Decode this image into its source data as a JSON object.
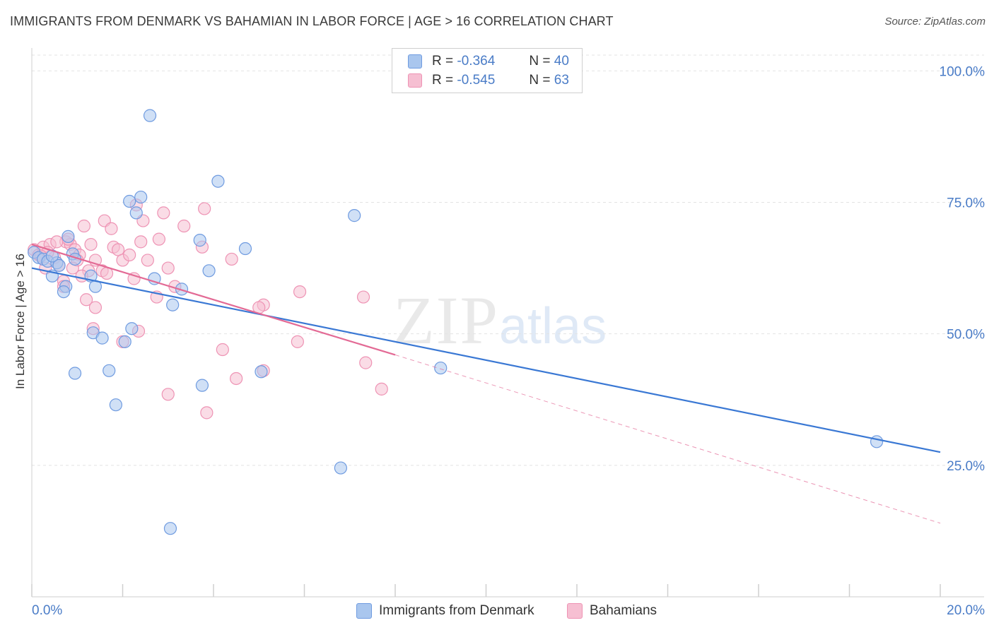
{
  "header": {
    "title": "IMMIGRANTS FROM DENMARK VS BAHAMIAN IN LABOR FORCE | AGE > 16 CORRELATION CHART",
    "source": "Source: ZipAtlas.com"
  },
  "watermark": {
    "zip": "ZIP",
    "atlas": "atlas"
  },
  "legend": {
    "series1": {
      "r_label": "R =",
      "r_value": "-0.364",
      "n_label": "N =",
      "n_value": "40"
    },
    "series2": {
      "r_label": "R =",
      "r_value": "-0.545",
      "n_label": "N =",
      "n_value": "63"
    }
  },
  "bottom_legend": {
    "series1": "Immigrants from Denmark",
    "series2": "Bahamians"
  },
  "colors": {
    "blue_fill": "#a9c6ee",
    "blue_stroke": "#6f9be0",
    "blue_line": "#3a78d4",
    "pink_fill": "#f6bfd2",
    "pink_stroke": "#ee93b4",
    "pink_line": "#e36a95",
    "grid": "#e3e3e3",
    "axis_text": "#4a7cc7"
  },
  "chart_data": {
    "type": "scatter",
    "title": "IMMIGRANTS FROM DENMARK VS BAHAMIAN IN LABOR FORCE | AGE > 16 CORRELATION CHART",
    "xlabel": "",
    "ylabel": "In Labor Force | Age > 16",
    "xlim": [
      0,
      20
    ],
    "ylim": [
      0,
      103
    ],
    "x_tick_labels": [
      "0.0%",
      "20.0%"
    ],
    "y_ticks": [
      25,
      50,
      75,
      100
    ],
    "y_tick_labels": [
      "25.0%",
      "50.0%",
      "75.0%",
      "100.0%"
    ],
    "grid": true,
    "series": [
      {
        "name": "Immigrants from Denmark",
        "color": "blue",
        "points": [
          [
            0.05,
            65.5
          ],
          [
            0.15,
            64.5
          ],
          [
            0.25,
            64.2
          ],
          [
            0.35,
            63.8
          ],
          [
            0.55,
            63.5
          ],
          [
            0.6,
            63.0
          ],
          [
            0.45,
            61.0
          ],
          [
            0.8,
            68.5
          ],
          [
            0.9,
            65.2
          ],
          [
            1.3,
            61.0
          ],
          [
            0.75,
            59.0
          ],
          [
            0.95,
            64.2
          ],
          [
            1.4,
            59.0
          ],
          [
            0.7,
            58.0
          ],
          [
            2.6,
            91.5
          ],
          [
            2.4,
            76.0
          ],
          [
            2.15,
            75.2
          ],
          [
            2.3,
            73.0
          ],
          [
            4.1,
            79.0
          ],
          [
            3.7,
            67.8
          ],
          [
            3.9,
            62.0
          ],
          [
            2.7,
            60.5
          ],
          [
            3.3,
            58.5
          ],
          [
            3.1,
            55.5
          ],
          [
            4.7,
            66.2
          ],
          [
            7.1,
            72.5
          ],
          [
            2.2,
            51.0
          ],
          [
            1.35,
            50.2
          ],
          [
            1.55,
            49.2
          ],
          [
            2.05,
            48.5
          ],
          [
            0.95,
            42.5
          ],
          [
            1.7,
            43.0
          ],
          [
            3.75,
            40.2
          ],
          [
            5.05,
            42.8
          ],
          [
            9.0,
            43.5
          ],
          [
            1.85,
            36.5
          ],
          [
            6.8,
            24.5
          ],
          [
            3.05,
            13.0
          ],
          [
            18.6,
            29.5
          ],
          [
            0.45,
            64.8
          ]
        ],
        "trend": {
          "x": [
            0,
            20
          ],
          "y": [
            62.5,
            27.5
          ],
          "style": "solid"
        }
      },
      {
        "name": "Bahamians",
        "color": "pink",
        "points": [
          [
            0.05,
            66.0
          ],
          [
            0.15,
            65.0
          ],
          [
            0.25,
            66.5
          ],
          [
            0.4,
            67.0
          ],
          [
            0.5,
            64.5
          ],
          [
            0.3,
            62.5
          ],
          [
            0.6,
            63.0
          ],
          [
            0.75,
            67.5
          ],
          [
            0.85,
            67.0
          ],
          [
            0.95,
            66.0
          ],
          [
            1.05,
            65.0
          ],
          [
            0.8,
            68.0
          ],
          [
            1.15,
            70.5
          ],
          [
            1.6,
            71.5
          ],
          [
            1.75,
            70.0
          ],
          [
            1.8,
            66.5
          ],
          [
            1.9,
            66.0
          ],
          [
            2.0,
            64.0
          ],
          [
            2.15,
            65.0
          ],
          [
            1.4,
            64.0
          ],
          [
            1.25,
            62.0
          ],
          [
            1.1,
            61.0
          ],
          [
            1.55,
            62.0
          ],
          [
            1.65,
            61.5
          ],
          [
            0.7,
            60.0
          ],
          [
            0.7,
            59.0
          ],
          [
            1.2,
            56.5
          ],
          [
            1.4,
            55.0
          ],
          [
            2.25,
            60.5
          ],
          [
            2.45,
            71.5
          ],
          [
            2.9,
            73.0
          ],
          [
            2.8,
            68.0
          ],
          [
            2.4,
            67.5
          ],
          [
            2.55,
            64.0
          ],
          [
            3.0,
            62.5
          ],
          [
            3.35,
            70.5
          ],
          [
            3.75,
            66.5
          ],
          [
            3.8,
            73.8
          ],
          [
            4.4,
            64.2
          ],
          [
            2.75,
            57.0
          ],
          [
            3.15,
            59.0
          ],
          [
            5.1,
            55.5
          ],
          [
            5.0,
            55.0
          ],
          [
            5.9,
            58.0
          ],
          [
            7.3,
            57.0
          ],
          [
            1.35,
            51.0
          ],
          [
            2.35,
            50.5
          ],
          [
            2.0,
            48.5
          ],
          [
            4.2,
            47.0
          ],
          [
            5.85,
            48.5
          ],
          [
            4.5,
            41.5
          ],
          [
            5.1,
            43.0
          ],
          [
            7.35,
            44.5
          ],
          [
            7.7,
            39.5
          ],
          [
            3.0,
            38.5
          ],
          [
            3.85,
            35.0
          ],
          [
            2.3,
            74.5
          ],
          [
            0.55,
            67.5
          ],
          [
            0.35,
            65.5
          ],
          [
            0.2,
            64.8
          ],
          [
            1.0,
            64.0
          ],
          [
            0.9,
            62.5
          ],
          [
            1.3,
            67.0
          ]
        ],
        "trend": {
          "x": [
            0,
            8.0
          ],
          "y": [
            67.0,
            46.0
          ],
          "style": "solid"
        },
        "trend_extension": {
          "x": [
            8.0,
            20
          ],
          "y": [
            46.0,
            14.0
          ],
          "style": "dashed"
        }
      }
    ]
  }
}
